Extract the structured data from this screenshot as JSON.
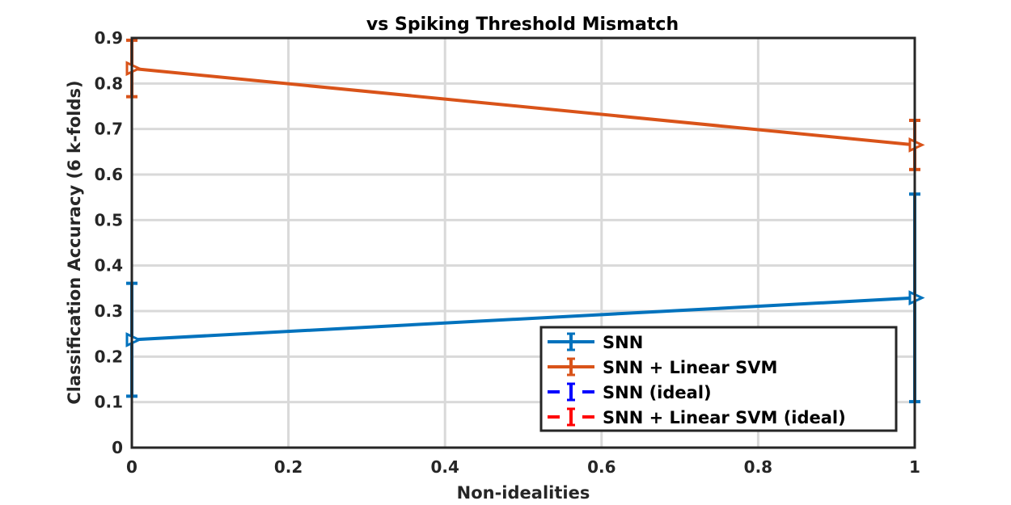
{
  "chart_data": {
    "type": "line",
    "title": "vs Spiking Threshold Mismatch",
    "xlabel": "Non-idealities",
    "ylabel": "Classification Accuracy (6 k-folds)",
    "xlim": [
      0,
      1
    ],
    "ylim": [
      0,
      0.9
    ],
    "xticks": [
      0,
      0.2,
      0.4,
      0.6,
      0.8,
      1
    ],
    "xtick_labels": [
      "0",
      "0.2",
      "0.4",
      "0.6",
      "0.8",
      "1"
    ],
    "yticks": [
      0,
      0.1,
      0.2,
      0.3,
      0.4,
      0.5,
      0.6,
      0.7,
      0.8,
      0.9
    ],
    "ytick_labels": [
      "0",
      "0.1",
      "0.2",
      "0.3",
      "0.4",
      "0.5",
      "0.6",
      "0.7",
      "0.8",
      "0.9"
    ],
    "grid": true,
    "legend_position": "bottom-right",
    "series": [
      {
        "name": "SNN",
        "color": "#0072BD",
        "x": [
          0,
          1
        ],
        "y": [
          0.237,
          0.329
        ],
        "err_low": [
          0.113,
          0.101
        ],
        "err_high": [
          0.361,
          0.557
        ],
        "line": "solid"
      },
      {
        "name": "SNN + Linear SVM",
        "color": "#D95319",
        "x": [
          0,
          1
        ],
        "y": [
          0.833,
          0.665
        ],
        "err_low": [
          0.771,
          0.611
        ],
        "err_high": [
          0.895,
          0.719
        ],
        "line": "solid"
      },
      {
        "name": "SNN (ideal)",
        "color": "#0000FF",
        "x": [],
        "y": [],
        "line": "dashed"
      },
      {
        "name": "SNN + Linear SVM (ideal)",
        "color": "#FF0000",
        "x": [],
        "y": [],
        "line": "dashed"
      }
    ]
  }
}
